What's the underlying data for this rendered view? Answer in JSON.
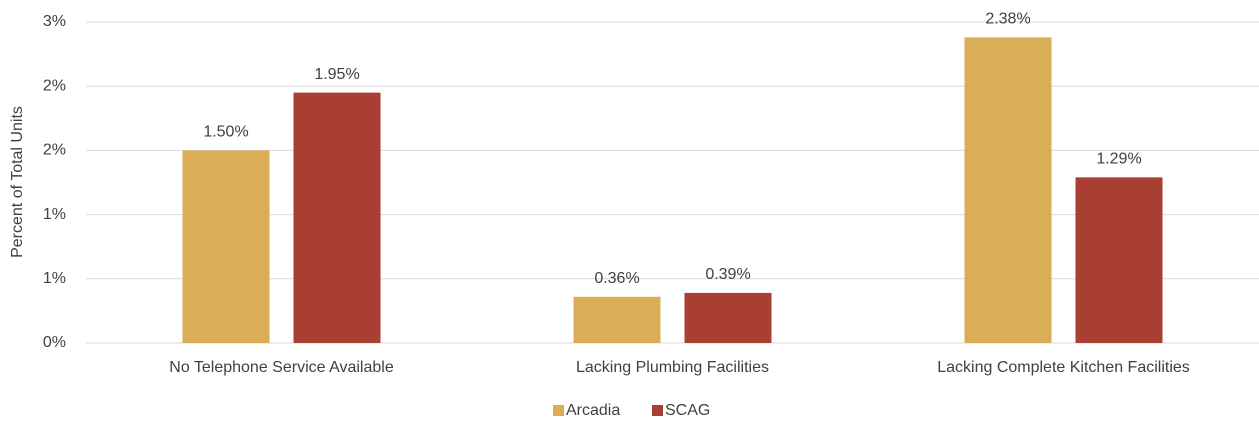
{
  "chart_data": {
    "type": "bar",
    "y_label": "Percent of Total Units",
    "categories": [
      "No Telephone Service Available",
      "Lacking Plumbing Facilities",
      "Lacking Complete Kitchen Facilities"
    ],
    "series": [
      {
        "name": "Arcadia",
        "color": "#d9ae57",
        "values": [
          1.5,
          0.36,
          2.38
        ],
        "value_labels": [
          "1.50%",
          "0.36%",
          "2.38%"
        ]
      },
      {
        "name": "SCAG",
        "color": "#a93f33",
        "values": [
          1.95,
          0.39,
          1.29
        ],
        "value_labels": [
          "1.95%",
          "0.39%",
          "1.29%"
        ]
      }
    ],
    "ylim": [
      0,
      2.5
    ],
    "yticks": [
      {
        "value": 0,
        "label": "0%"
      },
      {
        "value": 0.5,
        "label": "1%"
      },
      {
        "value": 1,
        "label": "1%"
      },
      {
        "value": 1.5,
        "label": "2%"
      },
      {
        "value": 2,
        "label": "2%"
      },
      {
        "value": 2.5,
        "label": "3%"
      }
    ],
    "grid": true,
    "legend": "bottom"
  }
}
